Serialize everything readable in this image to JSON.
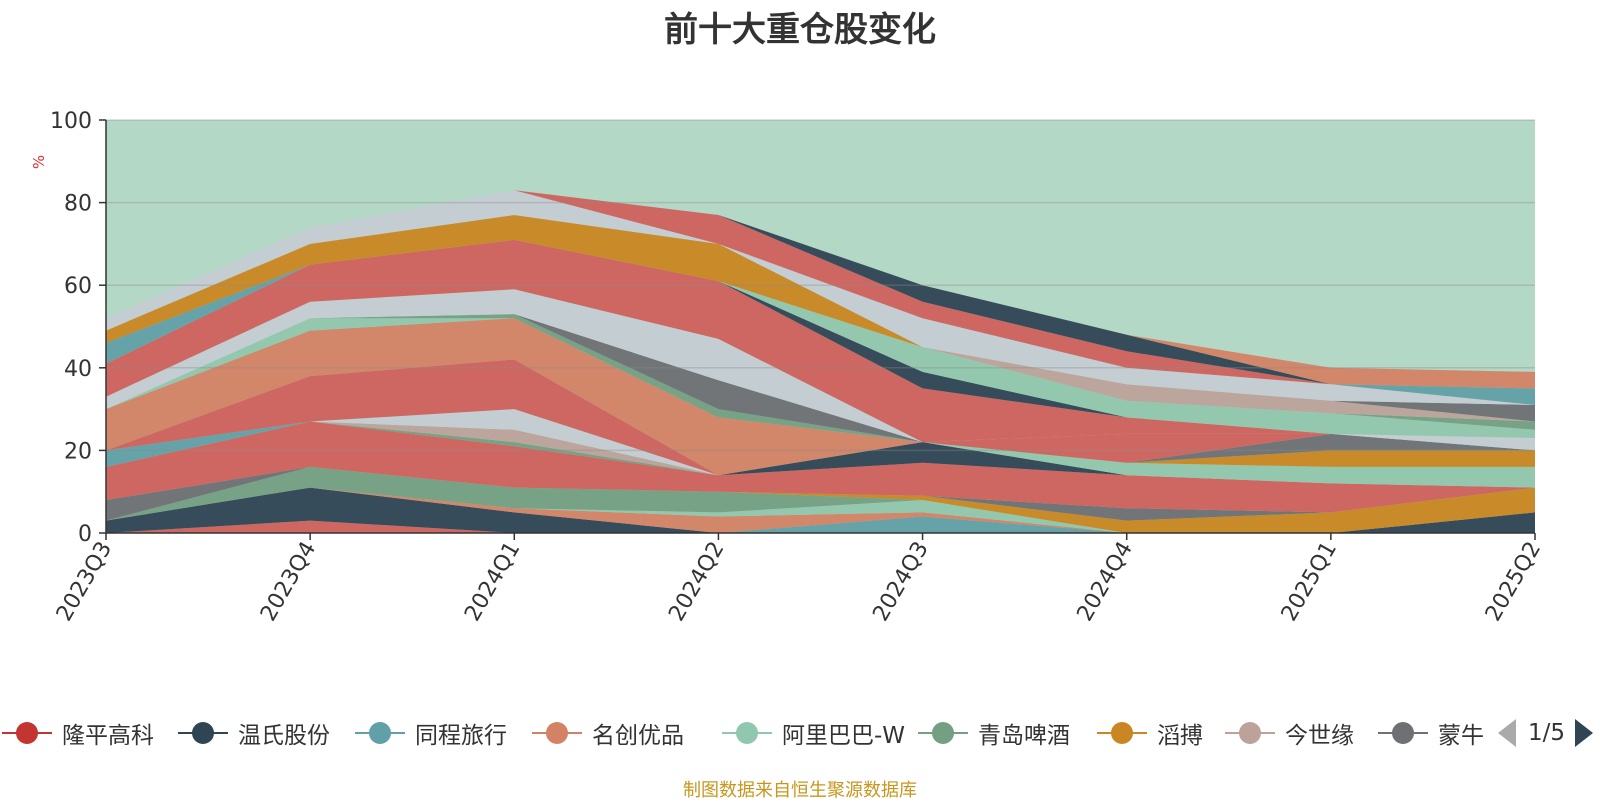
{
  "chart_data": {
    "type": "area",
    "title": "前十大重仓股变化",
    "ylabel": "%",
    "ylim": [
      0,
      100
    ],
    "yticks": [
      "0",
      "20",
      "40",
      "60",
      "80",
      "100"
    ],
    "grid": true,
    "categories": [
      "2023Q3",
      "2023Q4",
      "2024Q1",
      "2024Q2",
      "2024Q3",
      "2024Q4",
      "2025Q1",
      "2025Q2"
    ],
    "band_colors": [
      "#d0615c",
      "#2f4554",
      "#61a0a8",
      "#d48265",
      "#91c7ae",
      "#749f83",
      "#ca8622",
      "#bda29a",
      "#6e7074",
      "#c4ccd3"
    ],
    "series": [
      {
        "color": "#d0615c",
        "values": [
          0,
          3,
          0,
          0,
          0,
          0,
          0,
          0
        ]
      },
      {
        "color": "#2f4554",
        "values": [
          3,
          8,
          5,
          0,
          0,
          0,
          0,
          5
        ]
      },
      {
        "color": "#61a0a8",
        "values": [
          0,
          0,
          0,
          0,
          4,
          0,
          0,
          0
        ]
      },
      {
        "color": "#d48265",
        "values": [
          0,
          0,
          1,
          4,
          1,
          0,
          0,
          0
        ]
      },
      {
        "color": "#91c7ae",
        "values": [
          0,
          0,
          0,
          1,
          3,
          0,
          0,
          0
        ]
      },
      {
        "color": "#749f83",
        "values": [
          0,
          5,
          5,
          5,
          0,
          0,
          0,
          0
        ]
      },
      {
        "color": "#ca8622",
        "values": [
          0,
          0,
          0,
          0,
          1,
          3,
          5,
          6
        ]
      },
      {
        "color": "#bda29a",
        "values": [
          0,
          0,
          0,
          0,
          0,
          0,
          0,
          0
        ]
      },
      {
        "color": "#6e7074",
        "values": [
          5,
          0,
          0,
          0,
          0,
          3,
          0,
          0
        ]
      },
      {
        "color": "#c4ccd3",
        "values": [
          0,
          0,
          0,
          0,
          0,
          0,
          0,
          0
        ]
      },
      {
        "color": "#d0615c",
        "values": [
          8,
          11,
          10,
          4,
          8,
          8,
          7,
          0
        ]
      },
      {
        "color": "#2f4554",
        "values": [
          0,
          0,
          0,
          0,
          5,
          0,
          0,
          0
        ]
      },
      {
        "color": "#61a0a8",
        "values": [
          4,
          0,
          0,
          0,
          0,
          0,
          0,
          0
        ]
      },
      {
        "color": "#d48265",
        "values": [
          0,
          0,
          0,
          0,
          0,
          0,
          0,
          0
        ]
      },
      {
        "color": "#91c7ae",
        "values": [
          0,
          0,
          0,
          0,
          0,
          3,
          4,
          5
        ]
      },
      {
        "color": "#749f83",
        "values": [
          0,
          0,
          1,
          0,
          0,
          0,
          0,
          0
        ]
      },
      {
        "color": "#ca8622",
        "values": [
          0,
          0,
          0,
          0,
          0,
          0,
          4,
          4
        ]
      },
      {
        "color": "#bda29a",
        "values": [
          0,
          0,
          3,
          0,
          0,
          0,
          0,
          0
        ]
      },
      {
        "color": "#6e7074",
        "values": [
          0,
          0,
          0,
          0,
          0,
          0,
          4,
          0
        ]
      },
      {
        "color": "#c4ccd3",
        "values": [
          0,
          0,
          5,
          0,
          0,
          0,
          0,
          3
        ]
      },
      {
        "color": "#d0615c",
        "values": [
          0,
          11,
          12,
          0,
          0,
          7,
          0,
          0
        ]
      },
      {
        "color": "#2f4554",
        "values": [
          0,
          0,
          0,
          0,
          0,
          0,
          0,
          0
        ]
      },
      {
        "color": "#61a0a8",
        "values": [
          0,
          0,
          0,
          0,
          0,
          0,
          0,
          0
        ]
      },
      {
        "color": "#d48265",
        "values": [
          10,
          11,
          10,
          14,
          0,
          0,
          0,
          0
        ]
      },
      {
        "color": "#91c7ae",
        "values": [
          0,
          3,
          0,
          0,
          0,
          0,
          0,
          0
        ]
      },
      {
        "color": "#749f83",
        "values": [
          0,
          0,
          1,
          2,
          0,
          0,
          0,
          0
        ]
      },
      {
        "color": "#ca8622",
        "values": [
          0,
          0,
          0,
          0,
          0,
          0,
          0,
          0
        ]
      },
      {
        "color": "#bda29a",
        "values": [
          0,
          0,
          0,
          0,
          0,
          0,
          0,
          0
        ]
      },
      {
        "color": "#6e7074",
        "values": [
          0,
          0,
          0,
          7,
          0,
          0,
          0,
          0
        ]
      },
      {
        "color": "#c4ccd3",
        "values": [
          3,
          4,
          6,
          10,
          0,
          0,
          0,
          0
        ]
      },
      {
        "color": "#d0615c",
        "values": [
          8,
          9,
          12,
          14,
          13,
          4,
          0,
          0
        ]
      },
      {
        "color": "#2f4554",
        "values": [
          0,
          0,
          0,
          0,
          4,
          0,
          0,
          0
        ]
      },
      {
        "color": "#61a0a8",
        "values": [
          5,
          0,
          0,
          0,
          0,
          0,
          0,
          0
        ]
      },
      {
        "color": "#d48265",
        "values": [
          0,
          0,
          0,
          0,
          0,
          0,
          0,
          0
        ]
      },
      {
        "color": "#91c7ae",
        "values": [
          0,
          0,
          0,
          0,
          6,
          4,
          5,
          2
        ]
      },
      {
        "color": "#749f83",
        "values": [
          0,
          0,
          0,
          0,
          0,
          0,
          0,
          2
        ]
      },
      {
        "color": "#ca8622",
        "values": [
          3,
          5,
          6,
          9,
          0,
          0,
          0,
          0
        ]
      },
      {
        "color": "#bda29a",
        "values": [
          0,
          0,
          0,
          0,
          0,
          4,
          3,
          0
        ]
      },
      {
        "color": "#6e7074",
        "values": [
          0,
          0,
          0,
          0,
          0,
          0,
          0,
          4
        ]
      },
      {
        "color": "#c4ccd3",
        "values": [
          3,
          4,
          6,
          0,
          7,
          4,
          4,
          0
        ]
      },
      {
        "color": "#d0615c",
        "values": [
          0,
          0,
          0,
          7,
          4,
          4,
          0,
          0
        ]
      },
      {
        "color": "#2f4554",
        "values": [
          0,
          0,
          0,
          0,
          4,
          4,
          0,
          0
        ]
      },
      {
        "color": "#61a0a8",
        "values": [
          0,
          0,
          0,
          0,
          0,
          0,
          0,
          4
        ]
      },
      {
        "color": "#d48265",
        "values": [
          0,
          0,
          0,
          0,
          0,
          0,
          4,
          4
        ]
      }
    ],
    "background_color": "#b3d8c5"
  },
  "legend": {
    "items": [
      {
        "name": "隆平高科",
        "color": "#c23531"
      },
      {
        "name": "温氏股份",
        "color": "#2f4554"
      },
      {
        "name": "同程旅行",
        "color": "#61a0a8"
      },
      {
        "name": "名创优品",
        "color": "#d48265"
      },
      {
        "name": "阿里巴巴-W",
        "color": "#91c7ae"
      },
      {
        "name": "青岛啤酒",
        "color": "#749f83"
      },
      {
        "name": "滔搏",
        "color": "#ca8622"
      },
      {
        "name": "今世缘",
        "color": "#bda29a"
      },
      {
        "name": "蒙牛",
        "color": "#6e7074"
      }
    ],
    "page": "1/5"
  },
  "source_note": "制图数据来自恒生聚源数据库"
}
